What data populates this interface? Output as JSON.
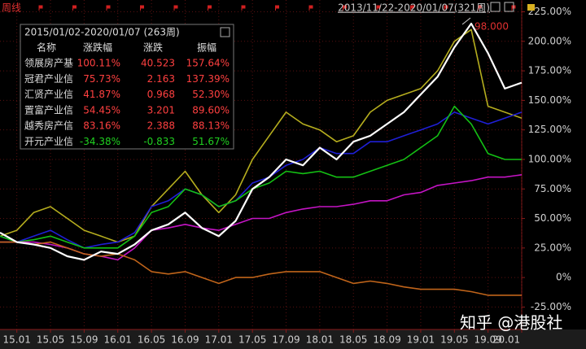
{
  "chart_data": {
    "type": "line",
    "period_label": "周线",
    "range_label": "2013/11/22-2020/01/07(321周)",
    "annotation": "98.000",
    "watermark": "知乎 @港股社",
    "xlim": [
      -2,
      60
    ],
    "ylim": [
      -44,
      235
    ],
    "grid": true,
    "xticks": [
      {
        "value": 0,
        "label": "15.01"
      },
      {
        "value": 4,
        "label": "15.05"
      },
      {
        "value": 8,
        "label": "15.09"
      },
      {
        "value": 12,
        "label": "16.01"
      },
      {
        "value": 16,
        "label": "16.05"
      },
      {
        "value": 20,
        "label": "16.09"
      },
      {
        "value": 24,
        "label": "17.01"
      },
      {
        "value": 28,
        "label": "17.05"
      },
      {
        "value": 32,
        "label": "17.09"
      },
      {
        "value": 36,
        "label": "18.01"
      },
      {
        "value": 40,
        "label": "18.05"
      },
      {
        "value": 44,
        "label": "18.09"
      },
      {
        "value": 48,
        "label": "19.01"
      },
      {
        "value": 52,
        "label": "19.05"
      },
      {
        "value": 56,
        "label": "19.09"
      },
      {
        "value": 60,
        "label": "20.01"
      }
    ],
    "yticks": [
      {
        "value": 225,
        "label": "225.00%"
      },
      {
        "value": 200,
        "label": "200.00%"
      },
      {
        "value": 175,
        "label": "175.00%"
      },
      {
        "value": 150,
        "label": "150.00%"
      },
      {
        "value": 125,
        "label": "125.00%"
      },
      {
        "value": 100,
        "label": "100.00%"
      },
      {
        "value": 75,
        "label": "75.00%"
      },
      {
        "value": 50,
        "label": "50.00%"
      },
      {
        "value": 25,
        "label": "25.00%"
      },
      {
        "value": 0,
        "label": "0%"
      },
      {
        "value": -25,
        "label": "-25.00%"
      }
    ],
    "x": [
      -2,
      0,
      2,
      4,
      6,
      8,
      10,
      12,
      14,
      16,
      18,
      20,
      22,
      24,
      26,
      28,
      30,
      32,
      34,
      36,
      38,
      40,
      42,
      44,
      46,
      48,
      50,
      52,
      54,
      56,
      58,
      60
    ],
    "series": [
      {
        "color": "#b5ad1e",
        "values": [
          35,
          40,
          55,
          60,
          50,
          40,
          35,
          30,
          35,
          60,
          75,
          90,
          70,
          55,
          70,
          100,
          120,
          140,
          130,
          125,
          115,
          120,
          140,
          150,
          155,
          160,
          175,
          200,
          210,
          145,
          140,
          135
        ]
      },
      {
        "color": "#1f1fd6",
        "values": [
          35,
          30,
          35,
          40,
          32,
          25,
          28,
          30,
          38,
          60,
          65,
          75,
          70,
          60,
          65,
          80,
          85,
          95,
          100,
          110,
          105,
          105,
          115,
          115,
          120,
          125,
          130,
          140,
          135,
          130,
          135,
          140
        ]
      },
      {
        "color": "#14c014",
        "values": [
          35,
          30,
          32,
          35,
          30,
          25,
          25,
          25,
          35,
          55,
          60,
          75,
          70,
          60,
          65,
          75,
          80,
          90,
          88,
          90,
          85,
          85,
          90,
          95,
          100,
          110,
          120,
          145,
          130,
          105,
          100,
          100
        ]
      },
      {
        "color": "#c414c4",
        "values": [
          30,
          30,
          30,
          28,
          25,
          20,
          18,
          15,
          25,
          40,
          42,
          45,
          42,
          40,
          45,
          50,
          50,
          55,
          58,
          60,
          60,
          62,
          65,
          65,
          70,
          72,
          78,
          80,
          82,
          85,
          85,
          87
        ]
      },
      {
        "color": "#c0641a",
        "values": [
          30,
          30,
          28,
          30,
          25,
          20,
          18,
          20,
          15,
          5,
          3,
          5,
          0,
          -5,
          0,
          0,
          3,
          5,
          5,
          5,
          0,
          -5,
          -3,
          -5,
          -8,
          -10,
          -10,
          -10,
          -12,
          -15,
          -15,
          -15
        ]
      },
      {
        "color": "#ffffff",
        "values": [
          38,
          30,
          28,
          25,
          18,
          15,
          22,
          20,
          28,
          40,
          45,
          55,
          42,
          35,
          48,
          75,
          85,
          100,
          95,
          110,
          100,
          115,
          120,
          130,
          140,
          155,
          170,
          195,
          215,
          190,
          160,
          165
        ]
      }
    ],
    "table": {
      "title": "2015/01/02-2020/01/07 (263周)",
      "headers": [
        "名称",
        "涨跌幅",
        "涨跌",
        "振幅"
      ],
      "rows": [
        [
          "领展房产基",
          "100.11%",
          "40.523",
          "157.64%"
        ],
        [
          "冠君产业信",
          "75.73%",
          "2.163",
          "137.39%"
        ],
        [
          "汇贤产业信",
          "41.87%",
          "0.968",
          "52.30%"
        ],
        [
          "置富产业信",
          "54.45%",
          "3.201",
          "89.60%"
        ],
        [
          "越秀房产信",
          "83.16%",
          "2.388",
          "88.13%"
        ],
        [
          "开元产业信",
          "-34.38%",
          "-0.833",
          "51.67%"
        ]
      ]
    }
  }
}
